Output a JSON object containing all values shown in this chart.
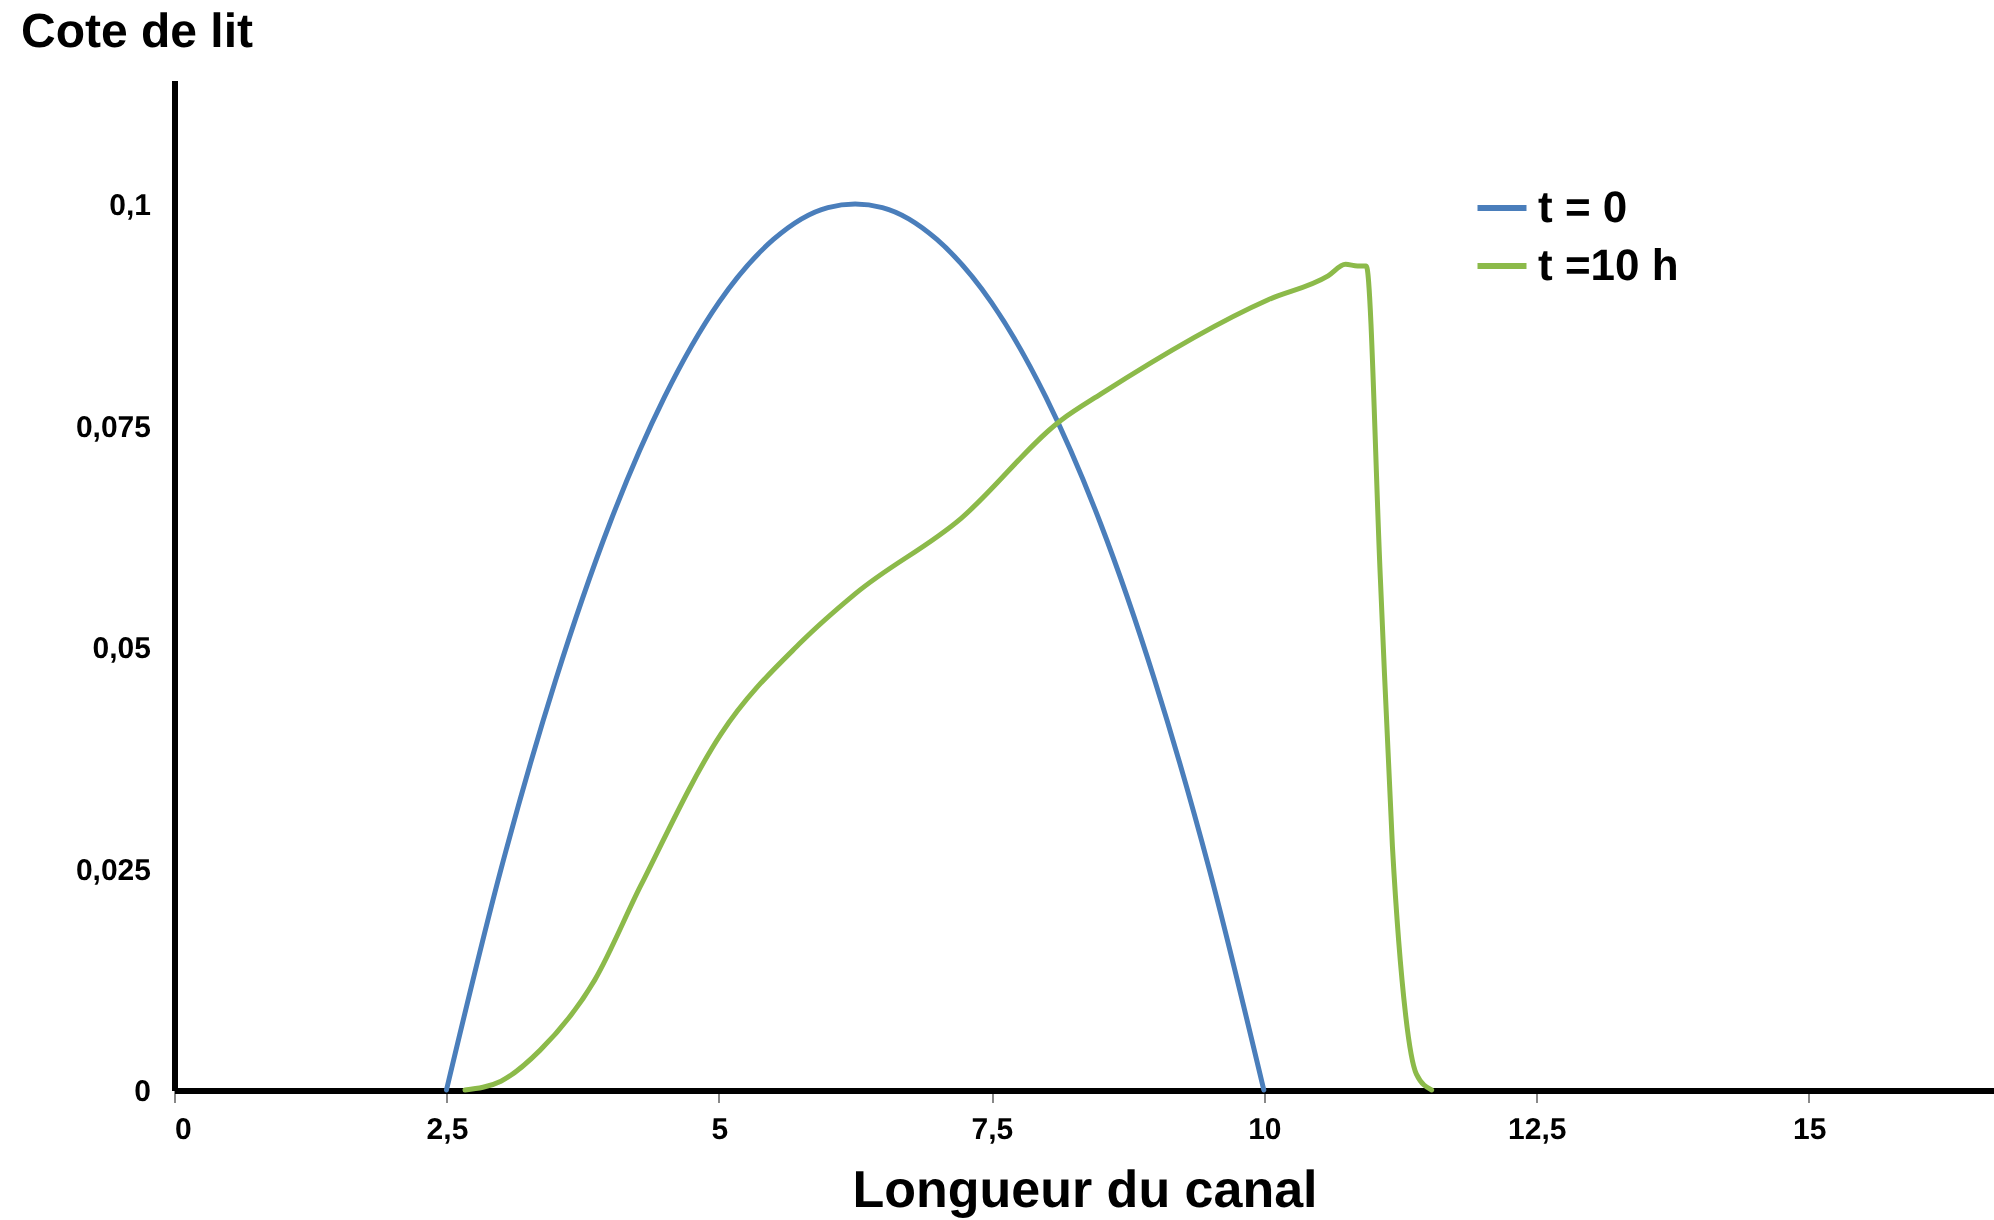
{
  "chart_data": {
    "type": "line",
    "xlabel": "Longueur du canal",
    "ylabel": "Cote de lit",
    "xlim": [
      0,
      16.7
    ],
    "xticks": [
      {
        "value": 0,
        "label": "0"
      },
      {
        "value": 2.5,
        "label": "2,5"
      },
      {
        "value": 5,
        "label": "5"
      },
      {
        "value": 7.5,
        "label": "7,5"
      },
      {
        "value": 10,
        "label": "10"
      },
      {
        "value": 12.5,
        "label": "12,5"
      },
      {
        "value": 15,
        "label": "15"
      }
    ],
    "ylim": [
      0,
      0.114
    ],
    "yticks": [
      {
        "value": 0,
        "label": "0"
      },
      {
        "value": 0.025,
        "label": "0,025"
      },
      {
        "value": 0.05,
        "label": "0,05"
      },
      {
        "value": 0.075,
        "label": "0,075"
      },
      {
        "value": 0.1,
        "label": "0,1"
      }
    ],
    "grid": false,
    "legend": "top right",
    "marker": "none",
    "line_style": "solid",
    "series": [
      {
        "name": "t = 0",
        "color": "#4a7ebb",
        "x": [
          2.5,
          3,
          3.5,
          4,
          4.5,
          5,
          5.5,
          6,
          6.25,
          6.5,
          7,
          7.5,
          8,
          8.5,
          9,
          9.5,
          10
        ],
        "values": [
          0,
          0.0249,
          0.0462,
          0.064,
          0.0782,
          0.0889,
          0.096,
          0.0996,
          0.1,
          0.0996,
          0.096,
          0.0889,
          0.0782,
          0.064,
          0.0462,
          0.0249,
          0
        ]
      },
      {
        "name": "t =10 h",
        "color": "#8cba4a",
        "x": [
          2.67,
          3.0,
          3.36,
          3.86,
          4.28,
          5.02,
          5.75,
          6.25,
          7.22,
          8.14,
          8.51,
          10.04,
          10.59,
          10.75,
          10.86,
          10.94,
          11.07,
          11.18,
          11.3,
          11.4,
          11.54
        ],
        "values": [
          0,
          0.001,
          0.0045,
          0.0124,
          0.023,
          0.0402,
          0.0505,
          0.056,
          0.0645,
          0.0756,
          0.0786,
          0.0892,
          0.0919,
          0.0932,
          0.093,
          0.093,
          0.0576,
          0.0275,
          0.0086,
          0.0018,
          0
        ]
      }
    ]
  }
}
